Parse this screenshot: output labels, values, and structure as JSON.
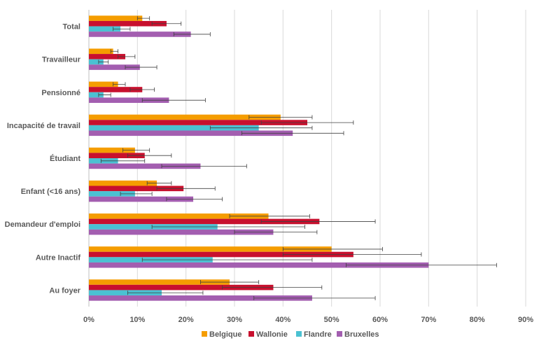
{
  "chart_data": {
    "type": "bar",
    "orientation": "horizontal",
    "categories": [
      "Total",
      "Travailleur",
      "Pensionné",
      "Incapacité de travail",
      "Étudiant",
      "Enfant (<16 ans)",
      "Demandeur d'emploi",
      "Autre Inactif",
      "Au foyer"
    ],
    "series": [
      {
        "name": "Belgique",
        "color": "#F59D00",
        "values": [
          11,
          5,
          6,
          39.5,
          9.5,
          14,
          37,
          50,
          29
        ],
        "error_low": [
          10,
          4.5,
          5,
          33,
          7,
          12,
          29,
          40,
          23
        ],
        "error_high": [
          12.5,
          6,
          7.5,
          46,
          12.5,
          17,
          45.5,
          60.5,
          35
        ]
      },
      {
        "name": "Wallonie",
        "color": "#C8102E",
        "values": [
          16,
          7.5,
          11,
          45,
          11.5,
          19.5,
          47.5,
          54.5,
          38
        ],
        "error_low": [
          13,
          6,
          8.5,
          35.5,
          8,
          14,
          35.5,
          40,
          27.5
        ],
        "error_high": [
          19,
          9.5,
          13.5,
          54.5,
          17,
          26,
          59,
          68.5,
          48
        ]
      },
      {
        "name": "Flandre",
        "color": "#4BC1D2",
        "values": [
          6.5,
          3,
          3,
          35,
          6,
          9.5,
          26.5,
          25.5,
          15
        ],
        "error_low": [
          5,
          2,
          2,
          25,
          2.5,
          6.5,
          13,
          11,
          8
        ],
        "error_high": [
          8.5,
          4,
          4.5,
          46,
          11.5,
          13,
          44.5,
          46,
          23.5
        ]
      },
      {
        "name": "Bruxelles",
        "color": "#A35EB0",
        "values": [
          21,
          10.5,
          16.5,
          42,
          23,
          21.5,
          38,
          70,
          46
        ],
        "error_low": [
          17.5,
          7.5,
          11,
          31.5,
          15,
          16,
          30,
          53,
          34
        ],
        "error_high": [
          25,
          14,
          24,
          52.5,
          32.5,
          27.5,
          47,
          84,
          59
        ]
      }
    ],
    "xaxis": {
      "min": 0,
      "max": 90,
      "step": 10,
      "tick_labels": [
        "0%",
        "10%",
        "20%",
        "30%",
        "40%",
        "50%",
        "60%",
        "70%",
        "80%",
        "90%"
      ]
    },
    "grid": true,
    "legend_position": "bottom",
    "title": "",
    "xlabel": "",
    "ylabel": ""
  }
}
